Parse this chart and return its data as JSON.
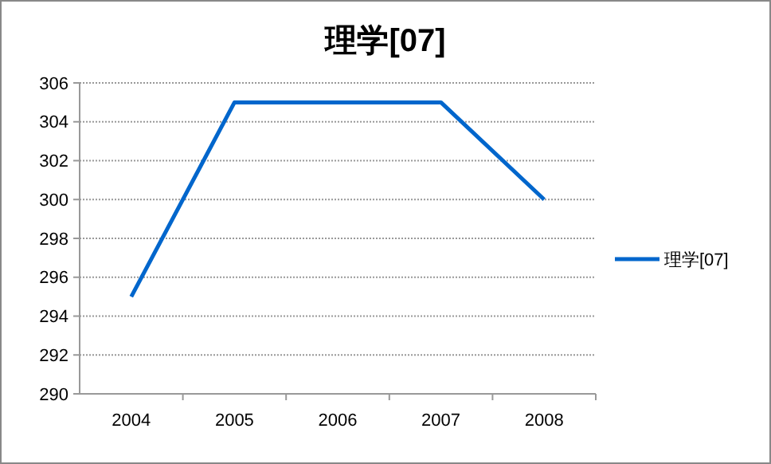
{
  "chart_data": {
    "type": "line",
    "title": "理学[07]",
    "categories": [
      "2004",
      "2005",
      "2006",
      "2007",
      "2008"
    ],
    "series": [
      {
        "name": "理学[07]",
        "color": "#0066cc",
        "values": [
          295,
          305,
          305,
          305,
          300
        ]
      }
    ],
    "ylim": [
      290,
      306
    ],
    "yticks": [
      290,
      292,
      294,
      296,
      298,
      300,
      302,
      304,
      306
    ],
    "grid": "y",
    "legend": "right",
    "marker": "none",
    "line_style": "solid"
  }
}
